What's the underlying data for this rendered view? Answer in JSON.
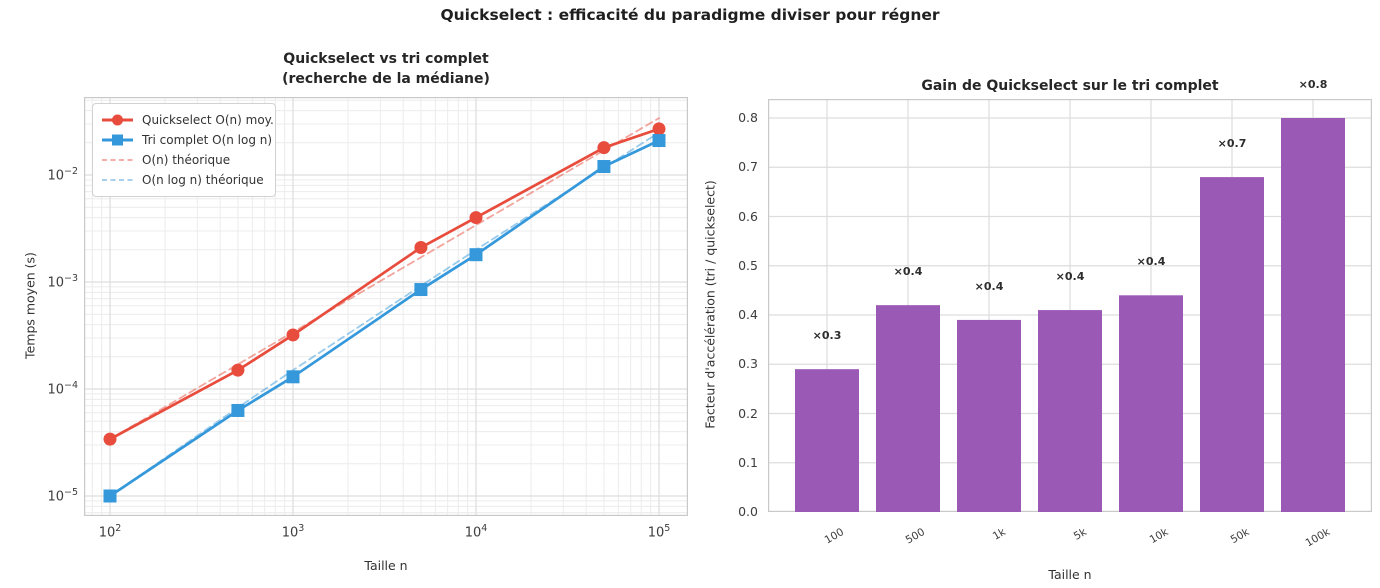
{
  "figure": {
    "title": "Quickselect : efficacité du paradigme diviser pour régner",
    "background": "#ffffff"
  },
  "colors": {
    "quickselect_red": "#e74c3c",
    "tri_blue": "#3498db",
    "bar_purple": "#9b59b6",
    "grid_major": "#dddddd",
    "grid_minor": "#ececec",
    "spine": "#c9c9c9",
    "text": "#262626"
  },
  "chart_data": [
    {
      "type": "line",
      "title_lines": [
        "Quickselect vs tri complet",
        "(recherche de la médiane)"
      ],
      "xlabel": "Taille n",
      "ylabel": "Temps moyen (s)",
      "xscale": "log",
      "yscale": "log",
      "grid": "major+minor",
      "legend_position": "upper left",
      "x": [
        100,
        500,
        1000,
        5000,
        10000,
        50000,
        100000
      ],
      "xlim": [
        72,
        145000
      ],
      "ylim": [
        6.5e-06,
        0.054
      ],
      "xtick_values": [
        100,
        1000,
        10000,
        100000
      ],
      "xticks": [
        {
          "m": "10",
          "e": "2"
        },
        {
          "m": "10",
          "e": "3"
        },
        {
          "m": "10",
          "e": "4"
        },
        {
          "m": "10",
          "e": "5"
        }
      ],
      "ytick_values": [
        0.01,
        0.001,
        0.0001,
        1e-05
      ],
      "yticks": [
        {
          "m": "10",
          "e": "−2"
        },
        {
          "m": "10",
          "e": "−3"
        },
        {
          "m": "10",
          "e": "−4"
        },
        {
          "m": "10",
          "e": "−5"
        }
      ],
      "series": [
        {
          "name": "Quickselect O(n) moy.",
          "color": "#e74c3c",
          "style": "solid",
          "marker": "circle",
          "values": [
            3.4e-05,
            0.00015,
            0.00032,
            0.0021,
            0.004,
            0.018,
            0.027
          ]
        },
        {
          "name": "Tri complet O(n log n)",
          "color": "#3498db",
          "style": "solid",
          "marker": "square",
          "values": [
            1e-05,
            6.3e-05,
            0.00013,
            0.00085,
            0.0018,
            0.012,
            0.021
          ]
        },
        {
          "name": "O(n) théorique",
          "color": "#e74c3c",
          "style": "dashed",
          "marker": "none",
          "values": [
            3.4e-05,
            0.00017,
            0.00034,
            0.0017,
            0.0034,
            0.017,
            0.034
          ]
        },
        {
          "name": "O(n log n) théorique",
          "color": "#3498db",
          "style": "dashed",
          "marker": "none",
          "values": [
            1e-05,
            6.7e-05,
            0.00015,
            0.00092,
            0.002,
            0.0117,
            0.0249
          ]
        }
      ]
    },
    {
      "type": "bar",
      "title": "Gain de Quickselect sur le tri complet",
      "xlabel": "Taille n",
      "ylabel": "Facteur d'accélération (tri / quickselect)",
      "grid": "major",
      "categories": [
        "100",
        "500",
        "1k",
        "5k",
        "10k",
        "50k",
        "100k"
      ],
      "values": [
        0.29,
        0.42,
        0.39,
        0.41,
        0.44,
        0.68,
        0.8
      ],
      "bar_labels": [
        "×0.3",
        "×0.4",
        "×0.4",
        "×0.4",
        "×0.4",
        "×0.7",
        "×0.8"
      ],
      "bar_color": "#9b59b6",
      "ylim": [
        0.0,
        0.84
      ],
      "yticks": [
        "0.0",
        "0.1",
        "0.2",
        "0.3",
        "0.4",
        "0.5",
        "0.6",
        "0.7",
        "0.8"
      ]
    }
  ]
}
